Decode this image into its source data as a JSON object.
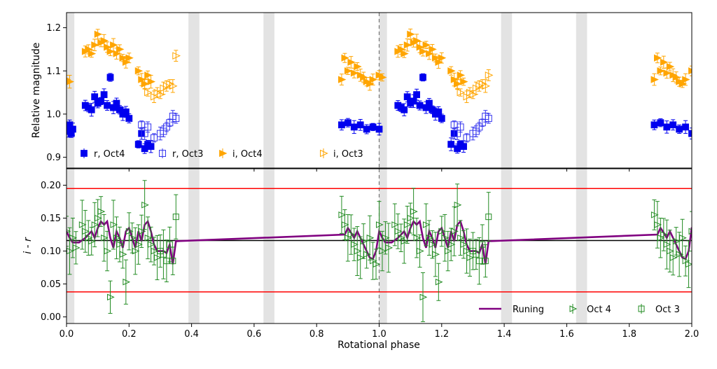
{
  "chart_data": [
    {
      "panel": "top",
      "type": "scatter",
      "ylabel": "Relative magnitude",
      "xlim": [
        0.0,
        2.0
      ],
      "ylim": [
        0.875,
        1.235
      ],
      "yticks": [
        "0.9",
        "1.0",
        "1.1",
        "1.2"
      ],
      "ytick_values": [
        0.9,
        1.0,
        1.1,
        1.2
      ],
      "legend": {
        "placement": "lower-left",
        "entries": [
          "r, Oct4",
          "r, Oct3",
          "i,  Oct4",
          "i,  Oct3"
        ]
      },
      "shaded_bands": [
        [
          0.0,
          0.025
        ],
        [
          0.39,
          0.425
        ],
        [
          0.63,
          0.665
        ],
        [
          1.0,
          1.025
        ],
        [
          1.39,
          1.425
        ],
        [
          1.63,
          1.665
        ]
      ],
      "vline": 1.0,
      "series": [
        {
          "legend_text": "r, Oct4",
          "marker": "filled-square",
          "color": "#0000ee",
          "x": [
            0.0,
            0.005,
            0.01,
            0.015,
            0.02,
            0.06,
            0.07,
            0.08,
            0.09,
            0.1,
            0.11,
            0.12,
            0.13,
            0.14,
            0.15,
            0.16,
            0.17,
            0.18,
            0.19,
            0.2,
            0.23,
            0.24,
            0.25,
            0.26,
            0.27,
            0.88,
            0.9,
            0.92,
            0.94,
            0.96,
            0.98,
            1.0,
            1.06,
            1.07,
            1.08,
            1.09,
            1.1,
            1.11,
            1.12,
            1.13,
            1.14,
            1.15,
            1.16,
            1.17,
            1.18,
            1.19,
            1.2,
            1.23,
            1.24,
            1.25,
            1.26,
            1.27,
            1.88,
            1.9,
            1.92,
            1.94,
            1.96,
            1.98,
            2.0
          ],
          "y": [
            0.97,
            0.96,
            0.975,
            0.955,
            0.965,
            1.02,
            1.015,
            1.01,
            1.04,
            1.025,
            1.03,
            1.045,
            1.02,
            1.085,
            1.015,
            1.025,
            1.01,
            1.0,
            1.005,
            0.99,
            0.93,
            0.955,
            0.92,
            0.93,
            0.925,
            0.975,
            0.98,
            0.97,
            0.975,
            0.965,
            0.97,
            0.965,
            1.02,
            1.015,
            1.01,
            1.04,
            1.025,
            1.03,
            1.045,
            1.02,
            1.085,
            1.015,
            1.025,
            1.01,
            1.0,
            1.005,
            0.99,
            0.93,
            0.955,
            0.92,
            0.93,
            0.925,
            0.975,
            0.98,
            0.97,
            0.975,
            0.965,
            0.97,
            0.955
          ]
        },
        {
          "legend_text": "r, Oct3",
          "marker": "open-square",
          "color": "#3333ee",
          "x": [
            0.24,
            0.25,
            0.26,
            0.28,
            0.3,
            0.31,
            0.32,
            0.33,
            0.34,
            0.35,
            1.24,
            1.25,
            1.26,
            1.28,
            1.3,
            1.31,
            1.32,
            1.33,
            1.34,
            1.35
          ],
          "y": [
            0.975,
            0.955,
            0.97,
            0.945,
            0.955,
            0.96,
            0.97,
            0.98,
            0.995,
            0.99,
            0.975,
            0.955,
            0.97,
            0.945,
            0.955,
            0.96,
            0.97,
            0.98,
            0.995,
            0.99
          ]
        },
        {
          "legend_text": "i,  Oct4",
          "marker": "filled-triangle-right",
          "color": "#ffa500",
          "x": [
            0.0,
            0.01,
            0.06,
            0.07,
            0.08,
            0.09,
            0.1,
            0.11,
            0.12,
            0.13,
            0.14,
            0.15,
            0.16,
            0.17,
            0.18,
            0.19,
            0.2,
            0.23,
            0.24,
            0.25,
            0.26,
            0.27,
            0.88,
            0.89,
            0.9,
            0.91,
            0.92,
            0.93,
            0.94,
            0.95,
            0.96,
            0.97,
            0.98,
            1.0,
            1.01,
            1.06,
            1.07,
            1.08,
            1.09,
            1.1,
            1.11,
            1.12,
            1.13,
            1.14,
            1.15,
            1.16,
            1.17,
            1.18,
            1.19,
            1.2,
            1.23,
            1.24,
            1.25,
            1.26,
            1.27,
            1.88,
            1.89,
            1.9,
            1.91,
            1.92,
            1.93,
            1.94,
            1.95,
            1.96,
            1.97,
            1.98,
            2.0
          ],
          "y": [
            1.08,
            1.075,
            1.145,
            1.15,
            1.14,
            1.16,
            1.185,
            1.165,
            1.17,
            1.155,
            1.145,
            1.16,
            1.14,
            1.15,
            1.13,
            1.12,
            1.13,
            1.1,
            1.08,
            1.07,
            1.09,
            1.075,
            1.08,
            1.13,
            1.1,
            1.12,
            1.095,
            1.11,
            1.09,
            1.085,
            1.075,
            1.07,
            1.08,
            1.09,
            1.085,
            1.145,
            1.15,
            1.14,
            1.16,
            1.185,
            1.165,
            1.17,
            1.155,
            1.145,
            1.16,
            1.14,
            1.15,
            1.13,
            1.12,
            1.13,
            1.1,
            1.08,
            1.07,
            1.09,
            1.075,
            1.08,
            1.13,
            1.1,
            1.12,
            1.095,
            1.11,
            1.09,
            1.085,
            1.075,
            1.07,
            1.08,
            1.1
          ]
        },
        {
          "legend_text": "i,  Oct3",
          "marker": "open-triangle-right",
          "color": "#ffa500",
          "x": [
            0.25,
            0.26,
            0.28,
            0.29,
            0.3,
            0.31,
            0.32,
            0.33,
            0.34,
            0.35,
            1.25,
            1.26,
            1.28,
            1.29,
            1.3,
            1.31,
            1.32,
            1.33,
            1.34,
            1.35
          ],
          "y": [
            1.07,
            1.05,
            1.04,
            1.05,
            1.045,
            1.06,
            1.065,
            1.07,
            1.065,
            1.135,
            1.07,
            1.05,
            1.04,
            1.05,
            1.045,
            1.06,
            1.065,
            1.07,
            1.065,
            1.09
          ]
        }
      ]
    },
    {
      "panel": "bottom",
      "type": "scatter",
      "xlabel": "Rotational phase",
      "ylabel": "i - r",
      "xlim": [
        0.0,
        2.0
      ],
      "ylim": [
        -0.01,
        0.225
      ],
      "xticks": [
        "0.0",
        "0.2",
        "0.4",
        "0.6",
        "0.8",
        "1.0",
        "1.2",
        "1.4",
        "1.6",
        "1.8",
        "2.0"
      ],
      "xtick_values": [
        0.0,
        0.2,
        0.4,
        0.6,
        0.8,
        1.0,
        1.2,
        1.4,
        1.6,
        1.8,
        2.0
      ],
      "yticks": [
        "0.00",
        "0.05",
        "0.10",
        "0.15",
        "0.20"
      ],
      "ytick_values": [
        0.0,
        0.05,
        0.1,
        0.15,
        0.2
      ],
      "legend": {
        "placement": "lower-right",
        "entries": [
          "Runing",
          "Oct 4",
          "Oct 3"
        ]
      },
      "shaded_bands": [
        [
          0.0,
          0.025
        ],
        [
          0.39,
          0.425
        ],
        [
          0.63,
          0.665
        ],
        [
          1.0,
          1.025
        ],
        [
          1.39,
          1.425
        ],
        [
          1.63,
          1.665
        ]
      ],
      "vline": 1.0,
      "hlines": [
        {
          "y": 0.195,
          "color": "#ff0000"
        },
        {
          "y": 0.116,
          "color": "#000000"
        },
        {
          "y": 0.038,
          "color": "#ff0000"
        }
      ],
      "series": [
        {
          "legend_text": "Runing",
          "type": "line",
          "color": "#800080",
          "x": [
            0.0,
            0.01,
            0.02,
            0.04,
            0.06,
            0.08,
            0.09,
            0.1,
            0.11,
            0.12,
            0.13,
            0.14,
            0.15,
            0.16,
            0.17,
            0.18,
            0.19,
            0.2,
            0.21,
            0.22,
            0.23,
            0.24,
            0.25,
            0.26,
            0.27,
            0.28,
            0.29,
            0.3,
            0.31,
            0.32,
            0.33,
            0.34,
            0.35,
            0.89,
            0.9,
            0.91,
            0.92,
            0.93,
            0.94,
            0.95,
            0.96,
            0.97,
            0.98,
            0.99,
            1.0,
            1.01,
            1.02,
            1.04,
            1.06,
            1.08,
            1.09,
            1.1,
            1.11,
            1.12,
            1.13,
            1.14,
            1.15,
            1.16,
            1.17,
            1.18,
            1.19,
            1.2,
            1.21,
            1.22,
            1.23,
            1.24,
            1.25,
            1.26,
            1.27,
            1.28,
            1.29,
            1.3,
            1.31,
            1.32,
            1.33,
            1.34,
            1.35,
            1.89,
            1.9,
            1.91,
            1.92,
            1.93,
            1.94,
            1.95,
            1.96,
            1.97,
            1.98,
            1.99,
            2.0
          ],
          "y": [
            0.13,
            0.12,
            0.113,
            0.113,
            0.12,
            0.13,
            0.12,
            0.135,
            0.145,
            0.14,
            0.145,
            0.12,
            0.105,
            0.13,
            0.12,
            0.105,
            0.13,
            0.135,
            0.12,
            0.105,
            0.13,
            0.115,
            0.14,
            0.145,
            0.13,
            0.11,
            0.1,
            0.1,
            0.1,
            0.097,
            0.11,
            0.08,
            0.115,
            0.125,
            0.135,
            0.128,
            0.12,
            0.13,
            0.12,
            0.11,
            0.1,
            0.09,
            0.088,
            0.1,
            0.13,
            0.12,
            0.113,
            0.113,
            0.12,
            0.13,
            0.12,
            0.135,
            0.145,
            0.14,
            0.145,
            0.12,
            0.105,
            0.13,
            0.12,
            0.105,
            0.13,
            0.135,
            0.12,
            0.105,
            0.13,
            0.115,
            0.14,
            0.145,
            0.13,
            0.11,
            0.1,
            0.1,
            0.1,
            0.097,
            0.11,
            0.08,
            0.115,
            0.125,
            0.135,
            0.128,
            0.12,
            0.13,
            0.12,
            0.11,
            0.1,
            0.09,
            0.088,
            0.1,
            0.136
          ]
        },
        {
          "legend_text": "Oct 4",
          "marker": "open-triangle-right",
          "color": "#228b22",
          "x": [
            0.0,
            0.01,
            0.02,
            0.03,
            0.05,
            0.06,
            0.07,
            0.08,
            0.09,
            0.1,
            0.11,
            0.12,
            0.13,
            0.14,
            0.15,
            0.16,
            0.17,
            0.18,
            0.19,
            0.2,
            0.21,
            0.22,
            0.23,
            0.24,
            0.25,
            0.26,
            0.27,
            0.28,
            0.29,
            0.88,
            0.89,
            0.9,
            0.91,
            0.92,
            0.93,
            0.94,
            0.95,
            0.96,
            0.97,
            0.98,
            0.99,
            1.0,
            1.01,
            1.02,
            1.03,
            1.05,
            1.06,
            1.07,
            1.08,
            1.09,
            1.1,
            1.11,
            1.12,
            1.13,
            1.14,
            1.15,
            1.16,
            1.17,
            1.18,
            1.19,
            1.2,
            1.21,
            1.22,
            1.23,
            1.24,
            1.25,
            1.26,
            1.27,
            1.28,
            1.29,
            1.88,
            1.89,
            1.9,
            1.91,
            1.92,
            1.93,
            1.94,
            1.95,
            1.96,
            1.97,
            1.98,
            1.99,
            2.0
          ],
          "y": [
            0.13,
            0.1,
            0.12,
            0.105,
            0.14,
            0.13,
            0.12,
            0.115,
            0.14,
            0.15,
            0.16,
            0.12,
            0.1,
            0.03,
            0.14,
            0.12,
            0.11,
            0.095,
            0.053,
            0.13,
            0.12,
            0.1,
            0.11,
            0.13,
            0.17,
            0.12,
            0.11,
            0.1,
            0.09,
            0.155,
            0.14,
            0.12,
            0.125,
            0.11,
            0.1,
            0.09,
            0.115,
            0.095,
            0.12,
            0.085,
            0.08,
            0.14,
            0.1,
            0.12,
            0.105,
            0.14,
            0.13,
            0.12,
            0.115,
            0.14,
            0.15,
            0.16,
            0.12,
            0.1,
            0.03,
            0.14,
            0.12,
            0.11,
            0.095,
            0.053,
            0.13,
            0.12,
            0.1,
            0.11,
            0.13,
            0.17,
            0.12,
            0.11,
            0.1,
            0.09,
            0.155,
            0.14,
            0.12,
            0.125,
            0.11,
            0.1,
            0.09,
            0.115,
            0.095,
            0.12,
            0.085,
            0.08,
            0.13
          ]
        },
        {
          "legend_text": "Oct 3",
          "marker": "open-square",
          "color": "#228b22",
          "x": [
            0.3,
            0.31,
            0.32,
            0.33,
            0.34,
            0.35,
            1.3,
            1.31,
            1.32,
            1.33,
            1.34,
            1.35
          ],
          "y": [
            0.1,
            0.095,
            0.085,
            0.11,
            0.085,
            0.152,
            0.1,
            0.095,
            0.085,
            0.11,
            0.085,
            0.152
          ]
        }
      ]
    }
  ]
}
